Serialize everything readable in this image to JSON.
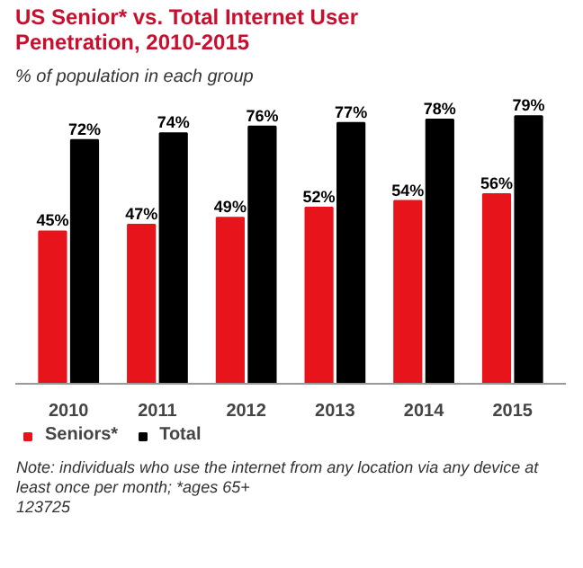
{
  "chart_data": {
    "type": "bar",
    "title": "US Senior* vs. Total Internet User Penetration, 2010-2015",
    "subtitle": "% of population in each group",
    "categories": [
      "2010",
      "2011",
      "2012",
      "2013",
      "2014",
      "2015"
    ],
    "series": [
      {
        "name": "Seniors*",
        "color": "#e8141c",
        "values": [
          45,
          47,
          49,
          52,
          54,
          56
        ],
        "value_labels": [
          "45%",
          "47%",
          "49%",
          "52%",
          "54%",
          "56%"
        ]
      },
      {
        "name": "Total",
        "color": "#000000",
        "values": [
          72,
          74,
          76,
          77,
          78,
          79
        ],
        "value_labels": [
          "72%",
          "74%",
          "76%",
          "77%",
          "78%",
          "79%"
        ]
      }
    ],
    "tick_labels": "x",
    "grid": false,
    "legend": "bottom",
    "annotations": [
      "Note: individuals who use the internet from any location via any device at",
      "least once per month; *ages 65+",
      "123725"
    ]
  }
}
